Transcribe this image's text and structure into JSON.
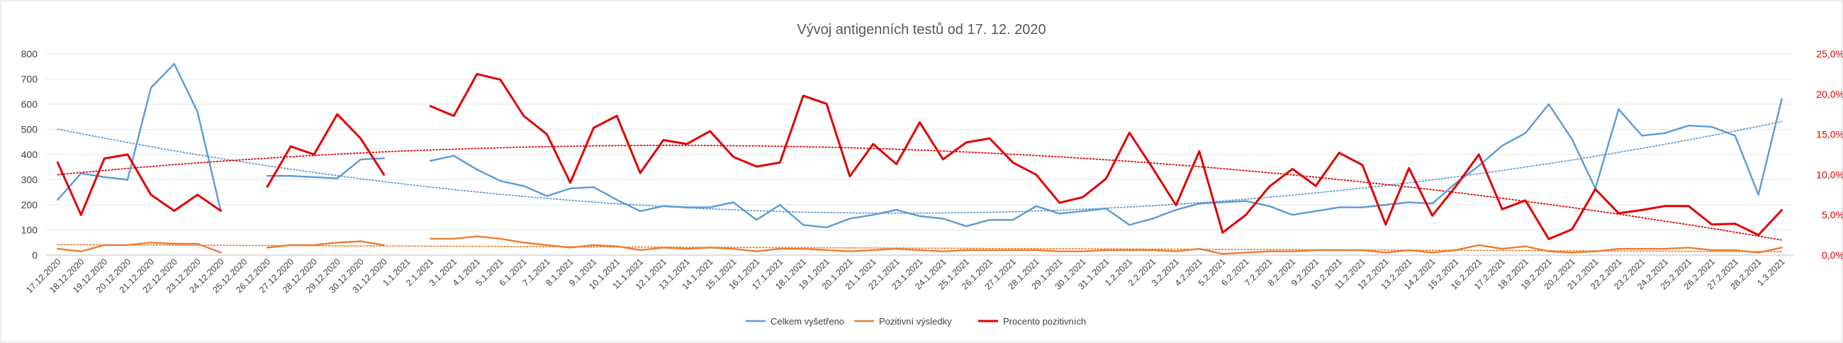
{
  "chart_data": {
    "type": "line",
    "title": "Vývoj antigenních testů od 17. 12. 2020",
    "xlabel": "",
    "ylabel": "",
    "ylim": [
      0,
      800
    ],
    "y_ticks": [
      "0",
      "100",
      "200",
      "300",
      "400",
      "500",
      "600",
      "700",
      "800"
    ],
    "y2lim": [
      0,
      25
    ],
    "y2_ticks": [
      "0,0%",
      "5,0%",
      "10,0%",
      "15,0%",
      "20,0%",
      "25,0%"
    ],
    "grid": true,
    "legend_position": "bottom",
    "categories": [
      "17.12.2020",
      "18.12.2020",
      "19.12.2020",
      "20.12.2020",
      "21.12.2020",
      "22.12.2020",
      "23.12.2020",
      "24.12.2020",
      "25.12.2020",
      "26.12.2020",
      "27.12.2020",
      "28.12.2020",
      "29.12.2020",
      "30.12.2020",
      "31.12.2020",
      "1.1.2021",
      "2.1.2021",
      "3.1.2021",
      "4.1.2021",
      "5.1.2021",
      "6.1.2021",
      "7.1.2021",
      "8.1.2021",
      "9.1.2021",
      "10.1.2021",
      "11.1.2021",
      "12.1.2021",
      "13.1.2021",
      "14.1.2021",
      "15.1.2021",
      "16.1.2021",
      "17.1.2021",
      "18.1.2021",
      "19.1.2021",
      "20.1.2021",
      "21.1.2021",
      "22.1.2021",
      "23.1.2021",
      "24.1.2021",
      "25.1.2021",
      "26.1.2021",
      "27.1.2021",
      "28.1.2021",
      "29.1.2021",
      "30.1.2021",
      "31.1.2021",
      "1.2.2021",
      "2.2.2021",
      "3.2.2021",
      "4.2.2021",
      "5.2.2021",
      "6.2.2021",
      "7.2.2021",
      "8.2.2021",
      "9.2.2021",
      "10.2.2021",
      "11.2.2021",
      "12.2.2021",
      "13.2.2021",
      "14.2.2021",
      "15.2.2021",
      "16.2.2021",
      "17.2.2021",
      "18.2.2021",
      "19.2.2021",
      "20.2.2021",
      "21.2.2021",
      "22.2.2021",
      "23.2.2021",
      "24.2.2021",
      "25.2.2021",
      "26.2.2021",
      "27.2.2021",
      "28.2.2021",
      "1.3.2021"
    ],
    "series": [
      {
        "name": "Celkem vyšetřeno",
        "color": "#5b9bd5",
        "axis": "left",
        "values": [
          220,
          325,
          310,
          300,
          665,
          760,
          570,
          175,
          null,
          315,
          315,
          310,
          305,
          380,
          385,
          null,
          375,
          395,
          340,
          295,
          275,
          235,
          265,
          270,
          220,
          175,
          195,
          190,
          190,
          210,
          140,
          200,
          120,
          110,
          145,
          160,
          180,
          155,
          145,
          115,
          140,
          140,
          195,
          165,
          175,
          185,
          120,
          145,
          180,
          205,
          210,
          215,
          195,
          160,
          175,
          190,
          190,
          200,
          210,
          205,
          285,
          355,
          435,
          485,
          600,
          460,
          265,
          580,
          475,
          485,
          515,
          510,
          475,
          240,
          620
        ]
      },
      {
        "name": "Pozitivní výsledky",
        "color": "#ed7d31",
        "axis": "left",
        "values": [
          25,
          15,
          40,
          40,
          50,
          45,
          45,
          10,
          null,
          30,
          40,
          40,
          50,
          55,
          40,
          null,
          65,
          65,
          75,
          65,
          50,
          40,
          30,
          40,
          35,
          20,
          30,
          25,
          30,
          25,
          15,
          25,
          25,
          20,
          15,
          20,
          25,
          20,
          15,
          20,
          20,
          20,
          20,
          15,
          15,
          20,
          20,
          20,
          15,
          25,
          5,
          10,
          15,
          15,
          20,
          20,
          20,
          10,
          20,
          10,
          20,
          40,
          25,
          35,
          15,
          10,
          15,
          25,
          25,
          25,
          30,
          20,
          20,
          10,
          30
        ]
      },
      {
        "name": "Procento pozitivních",
        "color": "#e00000",
        "axis": "right",
        "values": [
          11.5,
          5.0,
          12.0,
          12.5,
          7.5,
          5.5,
          7.5,
          5.5,
          null,
          8.5,
          13.5,
          12.5,
          17.5,
          14.5,
          10.0,
          null,
          18.5,
          17.3,
          22.5,
          21.8,
          17.3,
          15.0,
          9.0,
          15.8,
          17.3,
          10.2,
          14.3,
          13.8,
          15.4,
          12.2,
          11.0,
          11.5,
          19.8,
          18.8,
          9.8,
          13.8,
          11.3,
          16.5,
          11.9,
          14.0,
          14.5,
          11.5,
          10.0,
          6.5,
          7.2,
          9.5,
          15.2,
          10.8,
          6.2,
          12.9,
          2.8,
          5.0,
          8.5,
          10.7,
          8.6,
          12.7,
          11.2,
          3.8,
          10.8,
          4.9,
          8.5,
          12.5,
          5.7,
          6.8,
          2.0,
          3.2,
          8.2,
          5.2,
          5.6,
          6.1,
          6.1,
          3.8,
          3.9,
          2.5,
          5.6
        ]
      }
    ]
  },
  "legend": {
    "items": [
      "Celkem vyšetřeno",
      "Pozitivní výsledky",
      "Procento pozitivních"
    ]
  }
}
